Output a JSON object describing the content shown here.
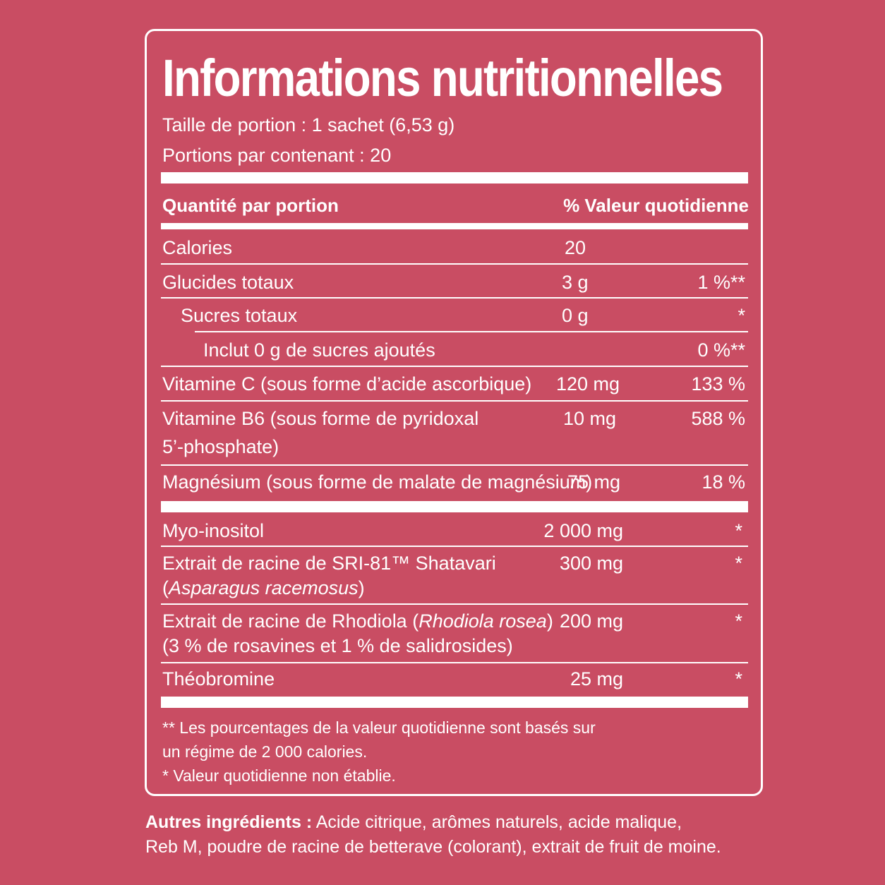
{
  "title": "Informations nutritionnelles",
  "serving_size": "Taille de portion : 1 sachet (6,53 g)",
  "servings_per_container": "Portions par contenant : 20",
  "header": {
    "amount": "Quantité par portion",
    "daily_value": "% Valeur quotidienne"
  },
  "rows": [
    {
      "label": "Calories",
      "amount": "20",
      "dv": ""
    },
    {
      "label": "Glucides totaux",
      "amount": "3 g",
      "dv": "1 %**"
    },
    {
      "label": "Sucres totaux",
      "amount": "0 g",
      "dv": "*"
    },
    {
      "label": "Inclut 0 g de sucres ajoutés",
      "amount": "",
      "dv": "0 %**"
    },
    {
      "label": "Vitamine C (sous forme d’acide ascorbique)",
      "amount": "120 mg",
      "dv": "133 %"
    },
    {
      "label": "Vitamine B6 (sous forme de pyridoxal",
      "label2": "5’-phosphate)",
      "amount": "10 mg",
      "dv": "588 %"
    },
    {
      "label": "Magnésium (sous forme de malate de magnésium)",
      "amount": "75 mg",
      "dv": "18 %"
    }
  ],
  "other_rows": [
    {
      "label": "Myo-inositol",
      "amount": "2 000 mg",
      "dv": "*"
    },
    {
      "label": "Extrait de racine de SRI-81™ Shatavari",
      "label2_italic": "Asparagus racemosus",
      "amount": "300 mg",
      "dv": "*"
    },
    {
      "label": "Extrait de racine de Rhodiola (",
      "label_italic": "Rhodiola rosea",
      "label_end": ")",
      "label2": "(3 % de rosavines et 1 % de salidrosides)",
      "amount": "200 mg",
      "dv": "*"
    },
    {
      "label": "Théobromine",
      "amount": "25 mg",
      "dv": "*"
    }
  ],
  "footnotes": [
    "** Les pourcentages de la valeur quotidienne sont basés sur",
    "un régime de 2 000 calories.",
    "* Valeur quotidienne non établie."
  ],
  "ingredients": {
    "label": "Autres ingrédients :",
    "line1": " Acide citrique, arômes naturels, acide malique,",
    "line2": "Reb M, poudre de racine de betterave (colorant), extrait de fruit de moine."
  }
}
